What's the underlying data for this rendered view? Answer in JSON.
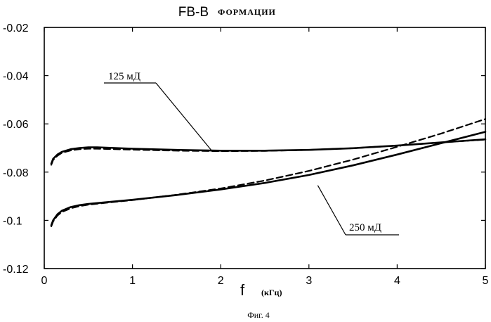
{
  "chart_data": {
    "type": "line",
    "title": "FB-B",
    "subtitle": "ФОРМАЦИИ",
    "xlabel": "f",
    "xunit": "(кГц)",
    "ylabel": "",
    "caption": "Фиг. 4",
    "xlim": [
      0,
      5
    ],
    "ylim": [
      -0.12,
      -0.02
    ],
    "xticks": [
      0,
      1,
      2,
      3,
      4,
      5
    ],
    "xtick_labels": [
      "0",
      "1",
      "2",
      "3",
      "4",
      "5"
    ],
    "yticks": [
      -0.02,
      -0.04,
      -0.06,
      -0.08,
      -0.1,
      -0.12
    ],
    "ytick_labels": [
      "-0.02",
      "-0.04",
      "-0.06",
      "-0.08",
      "-0.1",
      "-0.12"
    ],
    "grid": false,
    "annotations": [
      {
        "text": "125 мД",
        "points_to": {
          "x": 1.9,
          "y": -0.0712
        }
      },
      {
        "text": "250 мД",
        "points_to": {
          "x": 3.1,
          "y": -0.0855
        }
      }
    ],
    "series": [
      {
        "style": "solid",
        "x": [
          0.08,
          0.1,
          0.15,
          0.2,
          0.3,
          0.4,
          0.5,
          0.6,
          0.8,
          1.0,
          1.5,
          2.0,
          2.5,
          3.0,
          3.5,
          4.0,
          4.5,
          5.0
        ],
        "y": [
          -0.0765,
          -0.0745,
          -0.0727,
          -0.0716,
          -0.0705,
          -0.07,
          -0.0697,
          -0.0697,
          -0.07,
          -0.0703,
          -0.0708,
          -0.0711,
          -0.0711,
          -0.0708,
          -0.0701,
          -0.069,
          -0.0677,
          -0.0664
        ]
      },
      {
        "style": "dashed",
        "x": [
          0.08,
          0.1,
          0.15,
          0.2,
          0.3,
          0.4,
          0.5,
          0.6,
          0.8,
          1.0,
          1.5,
          2.0,
          2.5,
          3.0,
          3.5,
          4.0,
          4.5,
          5.0
        ],
        "y": [
          -0.077,
          -0.075,
          -0.0732,
          -0.072,
          -0.071,
          -0.0705,
          -0.0703,
          -0.0703,
          -0.0705,
          -0.0707,
          -0.0711,
          -0.0713,
          -0.0712,
          -0.0708,
          -0.0701,
          -0.069,
          -0.0677,
          -0.0665
        ]
      },
      {
        "style": "solid",
        "x": [
          0.08,
          0.1,
          0.15,
          0.2,
          0.3,
          0.4,
          0.5,
          0.7,
          1.0,
          1.5,
          2.0,
          2.5,
          3.0,
          3.5,
          4.0,
          4.5,
          5.0
        ],
        "y": [
          -0.102,
          -0.1,
          -0.0975,
          -0.096,
          -0.0945,
          -0.0937,
          -0.0932,
          -0.0925,
          -0.0915,
          -0.0895,
          -0.0872,
          -0.0845,
          -0.0812,
          -0.0772,
          -0.0727,
          -0.068,
          -0.0633
        ]
      },
      {
        "style": "dashed",
        "x": [
          0.08,
          0.1,
          0.15,
          0.2,
          0.3,
          0.4,
          0.5,
          0.7,
          1.0,
          1.5,
          2.0,
          2.5,
          3.0,
          3.5,
          4.0,
          4.5,
          5.0
        ],
        "y": [
          -0.1025,
          -0.1005,
          -0.098,
          -0.0965,
          -0.095,
          -0.0941,
          -0.0935,
          -0.0927,
          -0.0916,
          -0.0894,
          -0.0868,
          -0.0835,
          -0.0795,
          -0.0748,
          -0.0695,
          -0.064,
          -0.058
        ]
      }
    ]
  }
}
